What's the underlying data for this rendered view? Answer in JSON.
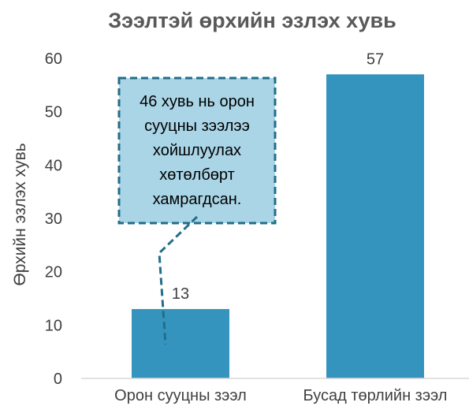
{
  "chart_data": {
    "type": "bar",
    "title": "Зээлтэй өрхийн эзлэх хувь",
    "ylabel": "Өрхийн эзлэх хувь",
    "xlabel": "",
    "categories": [
      "Орон сууцны зээл",
      "Бусад төрлийн зээл"
    ],
    "values": [
      13,
      57
    ],
    "data_labels": [
      "13",
      "57"
    ],
    "ylim": [
      0,
      60
    ],
    "yticks": [
      0,
      10,
      20,
      30,
      40,
      50,
      60
    ],
    "grid": false,
    "legend": "none",
    "bar_color": "#3494be",
    "annotation": {
      "text": "46 хувь нь орон сууцны зээлээ хойшлуулах хөтөлбөрт хамрагдсан.",
      "fill": "#a9d5e6",
      "border": "#236d8a"
    }
  }
}
